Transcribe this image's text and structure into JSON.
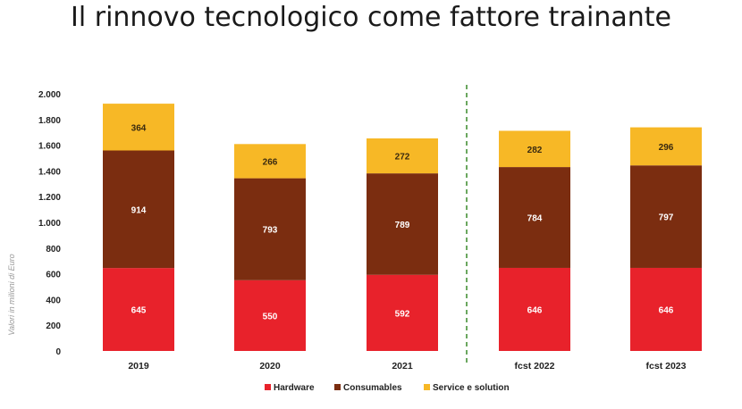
{
  "slide": {
    "title": "Il rinnovo tecnologico come fattore trainante"
  },
  "chart_data": {
    "type": "bar",
    "stacked": true,
    "categories": [
      "2019",
      "2020",
      "2021",
      "fcst 2022",
      "fcst 2023"
    ],
    "series": [
      {
        "name": "Hardware",
        "color": "#e8222b",
        "values": [
          645,
          550,
          592,
          646,
          646
        ]
      },
      {
        "name": "Consumables",
        "color": "#7b2d10",
        "values": [
          914,
          793,
          789,
          784,
          797
        ]
      },
      {
        "name": "Service e solution",
        "color": "#f7b826",
        "values": [
          364,
          266,
          272,
          282,
          296
        ]
      }
    ],
    "ylabel": "Valori in milioni di Euro",
    "ylim": [
      0,
      2000
    ],
    "yticks": [
      0,
      200,
      400,
      600,
      800,
      1000,
      1200,
      1400,
      1600,
      1800,
      2000
    ],
    "ytick_labels": [
      "0",
      "200",
      "400",
      "600",
      "800",
      "1.000",
      "1.200",
      "1.400",
      "1.600",
      "1.800",
      "2.000"
    ],
    "forecast_separator_after": "2021",
    "separator_color": "#3a8a2a",
    "grid": false,
    "legend_position": "bottom"
  }
}
